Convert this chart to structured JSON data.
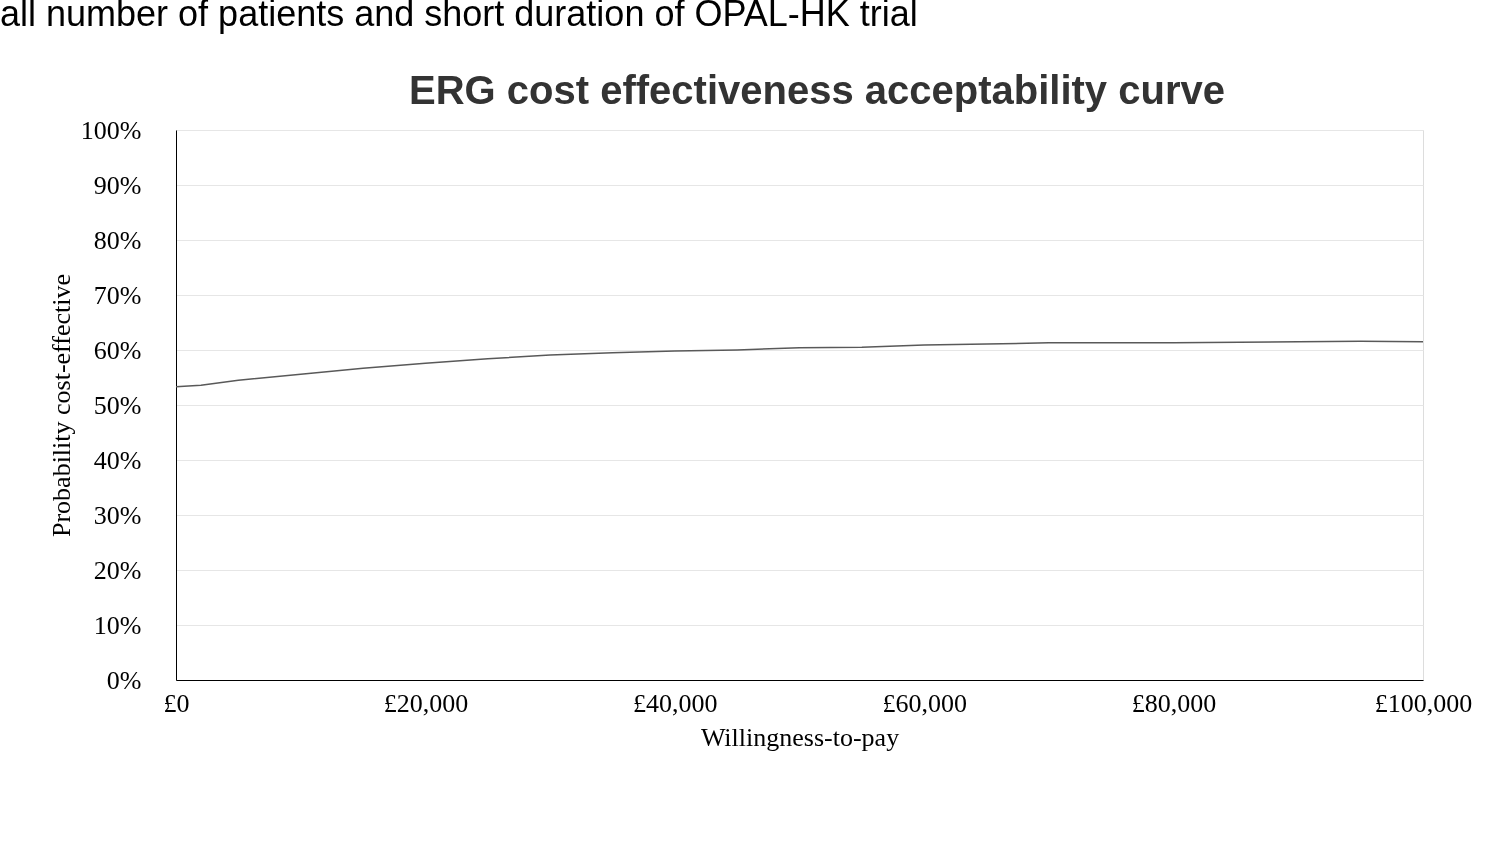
{
  "chart_data": {
    "type": "line",
    "title": "ERG cost effectiveness acceptability curve",
    "xlabel": "Willingness-to-pay",
    "ylabel": "Probability cost-effective",
    "annotations": [
      "all number of patients and short duration of OPAL-HK trial"
    ],
    "x": [
      0,
      2000,
      5000,
      10000,
      15000,
      20000,
      25000,
      30000,
      35000,
      40000,
      45000,
      50000,
      55000,
      60000,
      65000,
      70000,
      80000,
      90000,
      95000,
      100000
    ],
    "series": [
      {
        "color": "#595959",
        "values": [
          53.3,
          53.6,
          54.5,
          55.6,
          56.7,
          57.6,
          58.4,
          59.1,
          59.5,
          59.8,
          60.0,
          60.4,
          60.5,
          60.9,
          61.1,
          61.3,
          61.3,
          61.5,
          61.6,
          61.5
        ]
      }
    ],
    "xlim": [
      0,
      100000
    ],
    "xticks": [
      {
        "value": 0,
        "label": "£0"
      },
      {
        "value": 20000,
        "label": "£20,000"
      },
      {
        "value": 40000,
        "label": "£40,000"
      },
      {
        "value": 60000,
        "label": "£60,000"
      },
      {
        "value": 80000,
        "label": "£80,000"
      },
      {
        "value": 100000,
        "label": "£100,000"
      }
    ],
    "ylim": [
      0,
      100
    ],
    "yticks": [
      {
        "value": 0,
        "label": "0%"
      },
      {
        "value": 10,
        "label": "10%"
      },
      {
        "value": 20,
        "label": "20%"
      },
      {
        "value": 30,
        "label": "30%"
      },
      {
        "value": 40,
        "label": "40%"
      },
      {
        "value": 50,
        "label": "50%"
      },
      {
        "value": 60,
        "label": "60%"
      },
      {
        "value": 70,
        "label": "70%"
      },
      {
        "value": 80,
        "label": "80%"
      },
      {
        "value": 90,
        "label": "90%"
      },
      {
        "value": 100,
        "label": "100%"
      }
    ],
    "grid": "y"
  }
}
